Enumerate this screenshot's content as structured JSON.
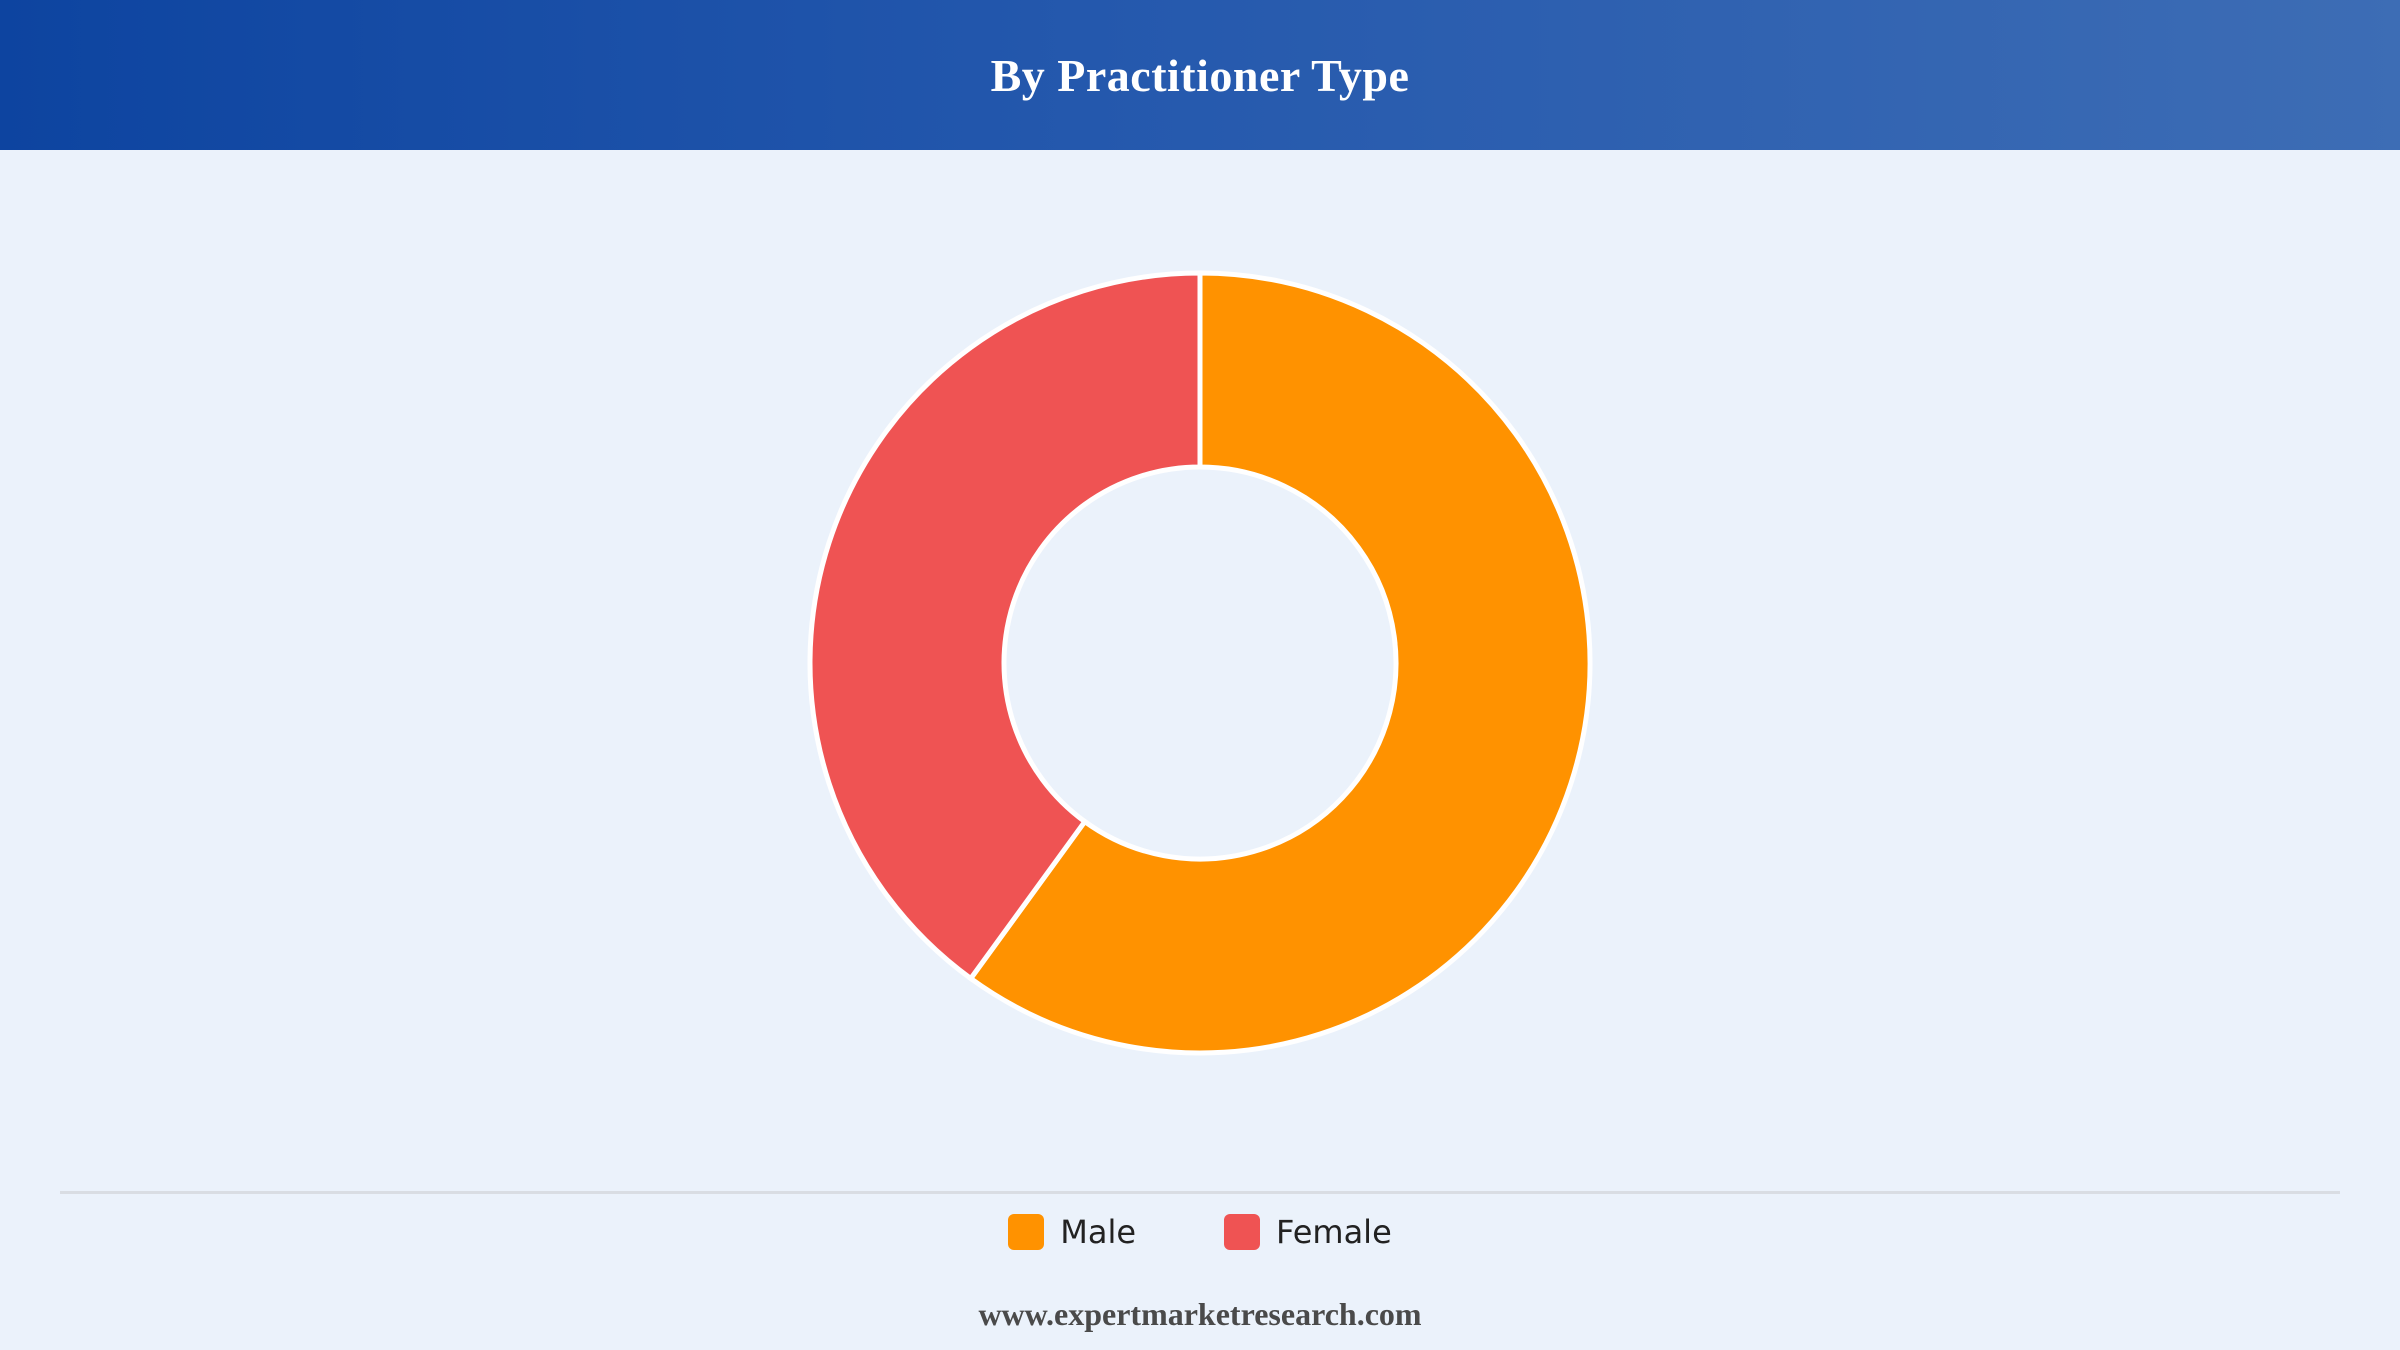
{
  "header": {
    "title": "By Practitioner Type"
  },
  "chart_data": {
    "type": "pie",
    "donut": true,
    "categories": [
      "Male",
      "Female"
    ],
    "values": [
      60,
      40
    ],
    "colors": [
      "#ff9200",
      "#ef5353"
    ],
    "legend_position": "bottom"
  },
  "legend": {
    "items": [
      {
        "label": "Male",
        "color": "#ff9200"
      },
      {
        "label": "Female",
        "color": "#ef5353"
      }
    ]
  },
  "footer": {
    "url": "www.expertmarketresearch.com"
  }
}
